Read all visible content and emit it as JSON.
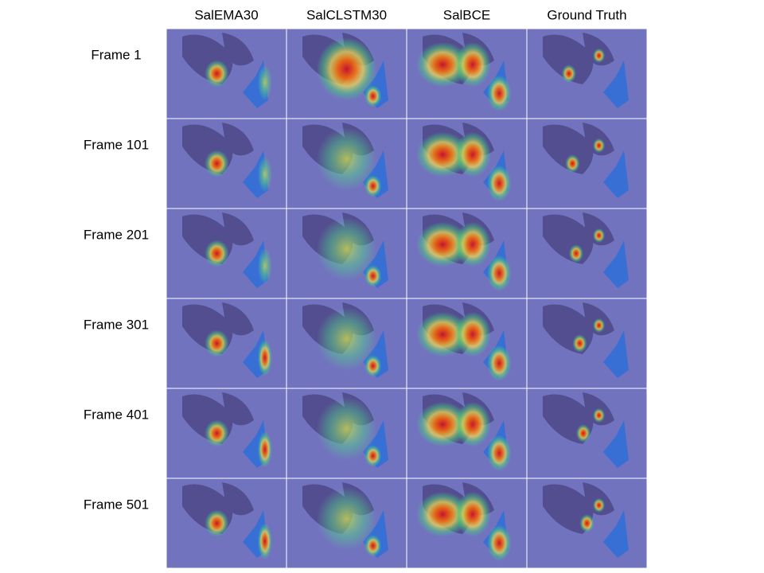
{
  "figure": {
    "columns": [
      "SalEMA30",
      "SalCLSTM30",
      "SalBCE",
      "Ground Truth"
    ],
    "rows": [
      "Frame 1",
      "Frame 101",
      "Frame 201",
      "Frame 301",
      "Frame 401",
      "Frame 501"
    ]
  }
}
